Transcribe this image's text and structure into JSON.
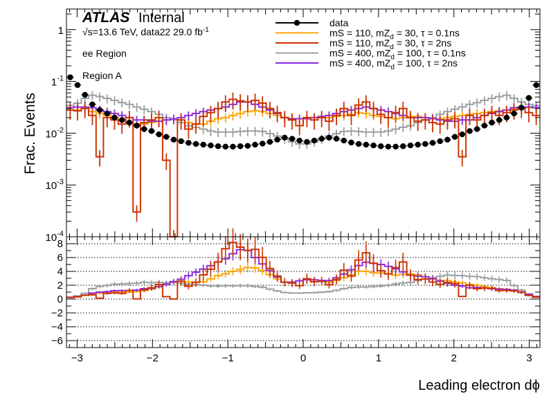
{
  "chart_data": [
    {
      "type": "line",
      "title": "",
      "annotations": {
        "experiment": "ATLAS",
        "status": "Internal",
        "energy_prefix": "√s=13.6 TeV, data22 29.0 fb",
        "lumi_exponent": "-1",
        "region1": "ee Region",
        "region2": "Region A"
      },
      "xlabel": "Leading electron dϕ",
      "ylabel": "Frac. Events",
      "x_scale": "linear",
      "y_scale": "log",
      "xlim": [
        -3.1416,
        3.1416
      ],
      "ylim": [
        0.0001,
        2.5
      ],
      "x_ticks": [
        "−3",
        "−2",
        "−1",
        "0",
        "1",
        "2",
        "3"
      ],
      "y_ticks": [
        "10",
        "10",
        "10",
        "1"
      ],
      "y_tick_exponents": [
        "-4",
        "-3",
        "-2",
        "-1",
        ""
      ],
      "legend_position": "top-right",
      "legend": [
        {
          "label": "data",
          "sup": "",
          "tail": ""
        },
        {
          "label": "mS = 110, mZ",
          "sub": "d",
          "tail": " = 30, τ = 0.1ns"
        },
        {
          "label": "mS = 110, mZ",
          "sub": "d",
          "tail": " = 30, τ = 2ns"
        },
        {
          "label": "mS = 400, mZ",
          "sub": "d",
          "tail": " = 100, τ = 0.1ns"
        },
        {
          "label": "mS = 400, mZ",
          "sub": "d",
          "tail": " = 100, τ = 2ns"
        }
      ],
      "bin_edges_start": -3.1416,
      "bin_edges_end": 3.1416,
      "n_bins": 64,
      "series": [
        {
          "name": "data",
          "style": "markers",
          "color": "#000000",
          "values": [
            0.12,
            0.085,
            0.055,
            0.036,
            0.028,
            0.024,
            0.02,
            0.018,
            0.016,
            0.014,
            0.012,
            0.011,
            0.0095,
            0.0085,
            0.0075,
            0.007,
            0.0065,
            0.0062,
            0.006,
            0.0058,
            0.0056,
            0.0055,
            0.0055,
            0.0056,
            0.0057,
            0.006,
            0.0063,
            0.0068,
            0.0075,
            0.0082,
            0.0078,
            0.0072,
            0.0068,
            0.0072,
            0.0078,
            0.0082,
            0.0078,
            0.0072,
            0.0066,
            0.0062,
            0.006,
            0.0058,
            0.0056,
            0.0055,
            0.0055,
            0.0056,
            0.0058,
            0.006,
            0.0062,
            0.0065,
            0.007,
            0.0075,
            0.0085,
            0.0095,
            0.011,
            0.012,
            0.014,
            0.016,
            0.018,
            0.02,
            0.024,
            0.031,
            0.048,
            0.085
          ]
        },
        {
          "name": "mS = 110, mZd = 30, τ = 0.1ns",
          "style": "step",
          "color": "#ffa500",
          "values": [
            0.028,
            0.028,
            0.03,
            0.026,
            0.024,
            0.022,
            0.02,
            0.018,
            0.016,
            0.015,
            0.015,
            0.016,
            0.017,
            0.018,
            0.019,
            0.018,
            0.016,
            0.015,
            0.015,
            0.017,
            0.019,
            0.02,
            0.022,
            0.024,
            0.026,
            0.027,
            0.026,
            0.024,
            0.022,
            0.02,
            0.019,
            0.019,
            0.019,
            0.02,
            0.02,
            0.02,
            0.021,
            0.022,
            0.023,
            0.025,
            0.024,
            0.022,
            0.021,
            0.02,
            0.019,
            0.02,
            0.021,
            0.021,
            0.02,
            0.019,
            0.019,
            0.02,
            0.021,
            0.022,
            0.023,
            0.024,
            0.025,
            0.026,
            0.027,
            0.028,
            0.029,
            0.03,
            0.031,
            0.031
          ]
        },
        {
          "name": "mS = 110, mZd = 30, τ = 2ns",
          "style": "step",
          "color": "#cc3300",
          "values": [
            0.028,
            0.027,
            0.03,
            0.022,
            0.0035,
            0.02,
            0.018,
            0.015,
            0.02,
            0.0003,
            0.016,
            0.018,
            0.02,
            0.003,
            0.0001,
            0.018,
            0.012,
            0.015,
            0.021,
            0.025,
            0.03,
            0.04,
            0.045,
            0.042,
            0.04,
            0.043,
            0.038,
            0.03,
            0.025,
            0.02,
            0.018,
            0.014,
            0.02,
            0.018,
            0.02,
            0.017,
            0.022,
            0.03,
            0.022,
            0.035,
            0.04,
            0.03,
            0.023,
            0.02,
            0.025,
            0.03,
            0.02,
            0.017,
            0.018,
            0.016,
            0.015,
            0.018,
            0.019,
            0.0035,
            0.022,
            0.018,
            0.022,
            0.025,
            0.022,
            0.025,
            0.028,
            0.03,
            0.025,
            0.022
          ]
        },
        {
          "name": "mS = 400, mZd = 100, τ = 0.1ns",
          "style": "step",
          "color": "#9aa0a0",
          "values": [
            0.034,
            0.038,
            0.047,
            0.054,
            0.051,
            0.047,
            0.043,
            0.039,
            0.036,
            0.032,
            0.029,
            0.026,
            0.023,
            0.02,
            0.018,
            0.016,
            0.014,
            0.013,
            0.012,
            0.011,
            0.0105,
            0.0105,
            0.0105,
            0.0108,
            0.011,
            0.011,
            0.0108,
            0.0098,
            0.0088,
            0.0078,
            0.0068,
            0.0062,
            0.0062,
            0.0068,
            0.0078,
            0.0088,
            0.0098,
            0.0108,
            0.011,
            0.0108,
            0.0105,
            0.0105,
            0.0105,
            0.011,
            0.012,
            0.013,
            0.014,
            0.016,
            0.018,
            0.02,
            0.023,
            0.026,
            0.029,
            0.032,
            0.036,
            0.039,
            0.043,
            0.047,
            0.051,
            0.054,
            0.047,
            0.04,
            0.036,
            0.034
          ]
        },
        {
          "name": "mS = 400, mZd = 100, τ = 2ns",
          "style": "step",
          "color": "#8a2be2",
          "values": [
            0.031,
            0.032,
            0.032,
            0.031,
            0.028,
            0.026,
            0.024,
            0.022,
            0.02,
            0.018,
            0.018,
            0.017,
            0.017,
            0.018,
            0.019,
            0.02,
            0.022,
            0.024,
            0.026,
            0.028,
            0.03,
            0.032,
            0.036,
            0.04,
            0.04,
            0.036,
            0.032,
            0.028,
            0.024,
            0.02,
            0.019,
            0.019,
            0.019,
            0.02,
            0.021,
            0.022,
            0.024,
            0.026,
            0.028,
            0.03,
            0.032,
            0.03,
            0.028,
            0.026,
            0.024,
            0.022,
            0.02,
            0.02,
            0.02,
            0.019,
            0.018,
            0.017,
            0.017,
            0.018,
            0.018,
            0.02,
            0.022,
            0.024,
            0.026,
            0.028,
            0.031,
            0.032,
            0.032,
            0.031
          ]
        }
      ]
    },
    {
      "type": "line",
      "title": "",
      "xlabel": "",
      "ylabel": "",
      "ylim": [
        -7,
        9
      ],
      "y_ticks": [
        "8",
        "6",
        "4",
        "2",
        "0",
        "−2",
        "−4",
        "−6"
      ],
      "grid": true,
      "description_of_values": "ratio to data",
      "series": [
        {
          "name": "mS = 110, mZd = 30, τ = 0.1ns",
          "color": "#ffa500",
          "values": [
            0.23,
            0.33,
            0.55,
            0.72,
            0.86,
            0.92,
            1.0,
            1.0,
            1.0,
            1.07,
            1.25,
            1.45,
            1.79,
            2.12,
            2.53,
            2.57,
            2.46,
            2.42,
            2.5,
            2.93,
            3.39,
            3.64,
            4.0,
            4.29,
            4.56,
            4.5,
            4.13,
            3.53,
            2.93,
            2.44,
            2.44,
            2.64,
            2.79,
            2.78,
            2.56,
            2.44,
            2.69,
            3.06,
            3.48,
            4.03,
            4.0,
            3.79,
            3.75,
            3.64,
            3.45,
            3.57,
            3.62,
            3.5,
            3.23,
            2.92,
            2.71,
            2.67,
            2.47,
            2.32,
            2.09,
            2.0,
            1.79,
            1.63,
            1.5,
            1.4,
            1.21,
            0.97,
            0.65,
            0.36
          ]
        },
        {
          "name": "mS = 110, mZd = 30, τ = 2ns",
          "color": "#cc3300",
          "values": [
            0.23,
            0.32,
            0.55,
            0.61,
            0.13,
            0.83,
            0.9,
            0.83,
            1.25,
            0.02,
            1.33,
            1.64,
            2.1,
            0.35,
            0.01,
            2.57,
            1.85,
            2.42,
            3.5,
            4.31,
            5.36,
            7.27,
            8.18,
            7.5,
            7.02,
            7.17,
            6.03,
            4.41,
            3.33,
            2.44,
            2.31,
            1.94,
            2.94,
            2.5,
            2.56,
            2.07,
            2.82,
            4.17,
            3.33,
            5.65,
            6.67,
            5.17,
            4.11,
            3.64,
            4.55,
            5.36,
            3.45,
            2.83,
            2.9,
            2.46,
            2.14,
            2.4,
            2.24,
            0.37,
            2.0,
            1.5,
            1.57,
            1.56,
            1.22,
            1.25,
            1.17,
            0.97,
            0.52,
            0.26
          ]
        },
        {
          "name": "mS = 400, mZd = 100, τ = 0.1ns",
          "color": "#9aa0a0",
          "values": [
            0.28,
            0.45,
            0.85,
            1.5,
            1.82,
            1.96,
            2.15,
            2.17,
            2.25,
            2.29,
            2.42,
            2.36,
            2.42,
            2.35,
            2.4,
            2.29,
            2.15,
            2.1,
            2.0,
            1.9,
            1.88,
            1.91,
            1.91,
            1.93,
            1.93,
            1.83,
            1.71,
            1.44,
            1.17,
            0.95,
            0.87,
            0.86,
            0.91,
            0.94,
            1.0,
            1.07,
            1.26,
            1.5,
            1.67,
            1.74,
            1.75,
            1.81,
            1.88,
            2.0,
            2.18,
            2.32,
            2.41,
            2.67,
            2.9,
            3.08,
            3.29,
            3.47,
            3.41,
            3.37,
            3.27,
            3.25,
            3.07,
            2.94,
            2.83,
            2.7,
            1.96,
            1.29,
            0.75,
            0.4
          ]
        },
        {
          "name": "mS = 400, mZd = 100, τ = 2ns",
          "color": "#8a2be2",
          "values": [
            0.26,
            0.38,
            0.58,
            0.86,
            1.0,
            1.08,
            1.2,
            1.22,
            1.25,
            1.29,
            1.5,
            1.55,
            1.79,
            2.12,
            2.53,
            2.86,
            3.38,
            3.87,
            4.33,
            4.83,
            5.36,
            5.82,
            6.55,
            7.14,
            7.02,
            6.0,
            5.08,
            4.12,
            3.2,
            2.44,
            2.44,
            2.64,
            2.79,
            2.78,
            2.69,
            2.68,
            3.08,
            3.61,
            4.24,
            4.84,
            5.33,
            5.17,
            5.0,
            4.73,
            4.36,
            3.93,
            3.45,
            3.33,
            3.23,
            2.92,
            2.57,
            2.27,
            2.0,
            1.89,
            1.64,
            1.67,
            1.57,
            1.5,
            1.44,
            1.4,
            1.29,
            1.03,
            0.67,
            0.36
          ]
        }
      ]
    }
  ]
}
